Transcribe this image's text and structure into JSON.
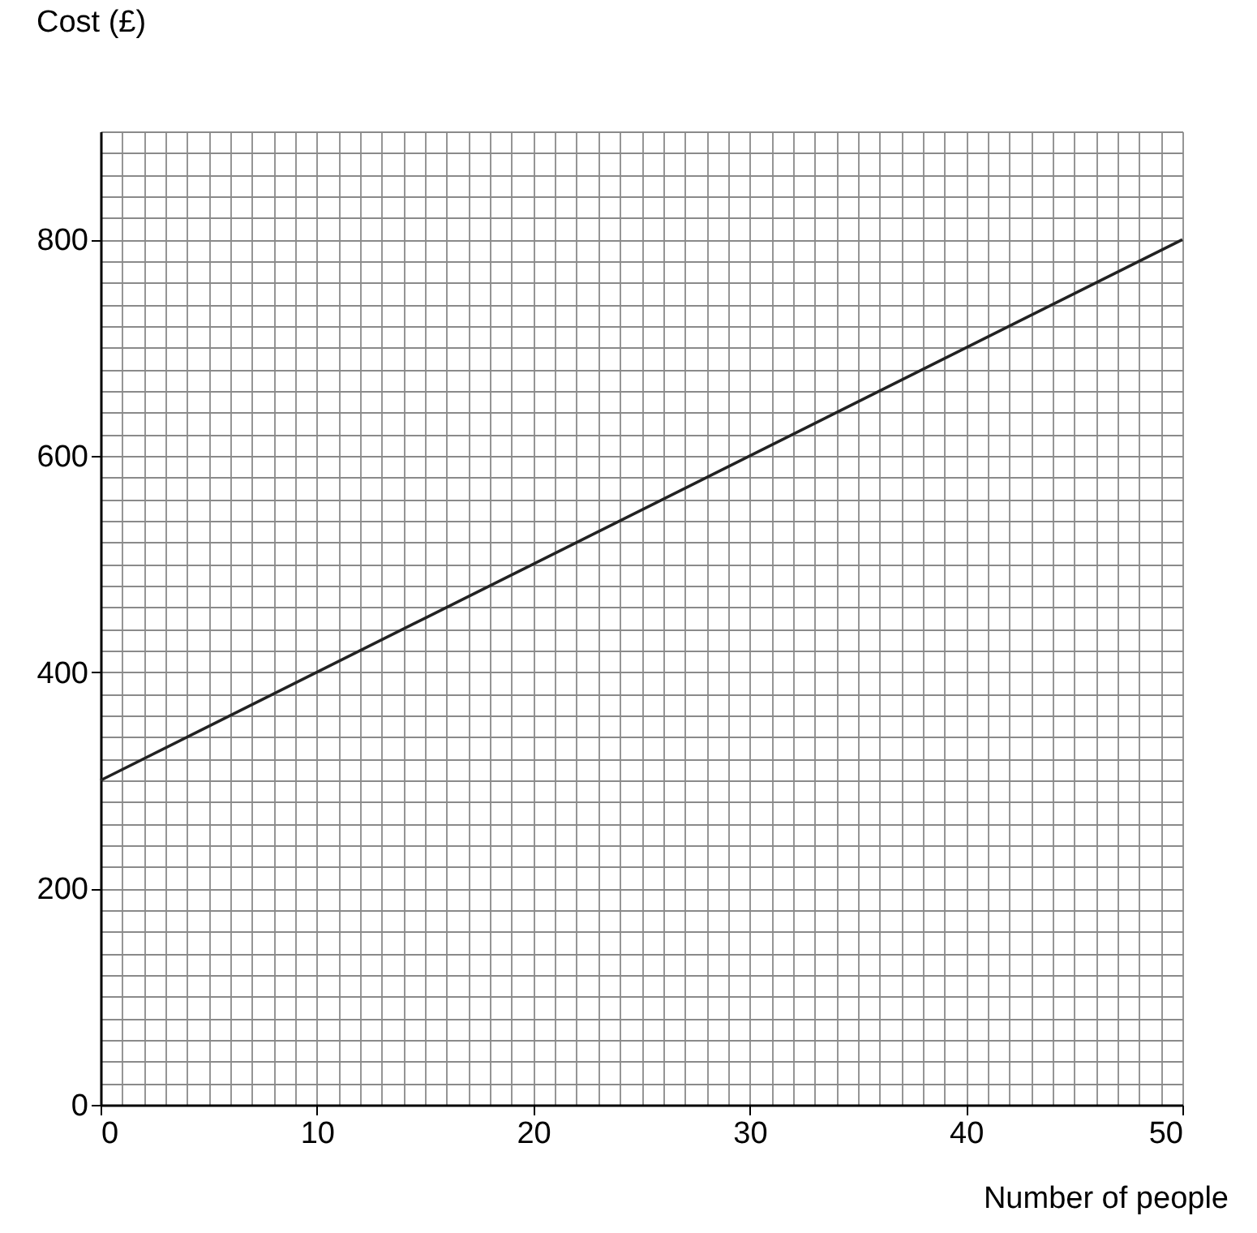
{
  "chart_data": {
    "type": "line",
    "xlabel": "Number of people",
    "ylabel": "Cost (£)",
    "x": [
      0,
      50
    ],
    "series": [
      {
        "color": "#222222",
        "values": [
          300,
          800
        ]
      }
    ],
    "xlim": [
      0,
      50
    ],
    "ylim": [
      0,
      900
    ],
    "xticks": [
      0,
      10,
      20,
      30,
      40,
      50
    ],
    "yticks": [
      0,
      200,
      400,
      600,
      800
    ],
    "grid": true,
    "marker": "none",
    "line_style": "solid"
  }
}
